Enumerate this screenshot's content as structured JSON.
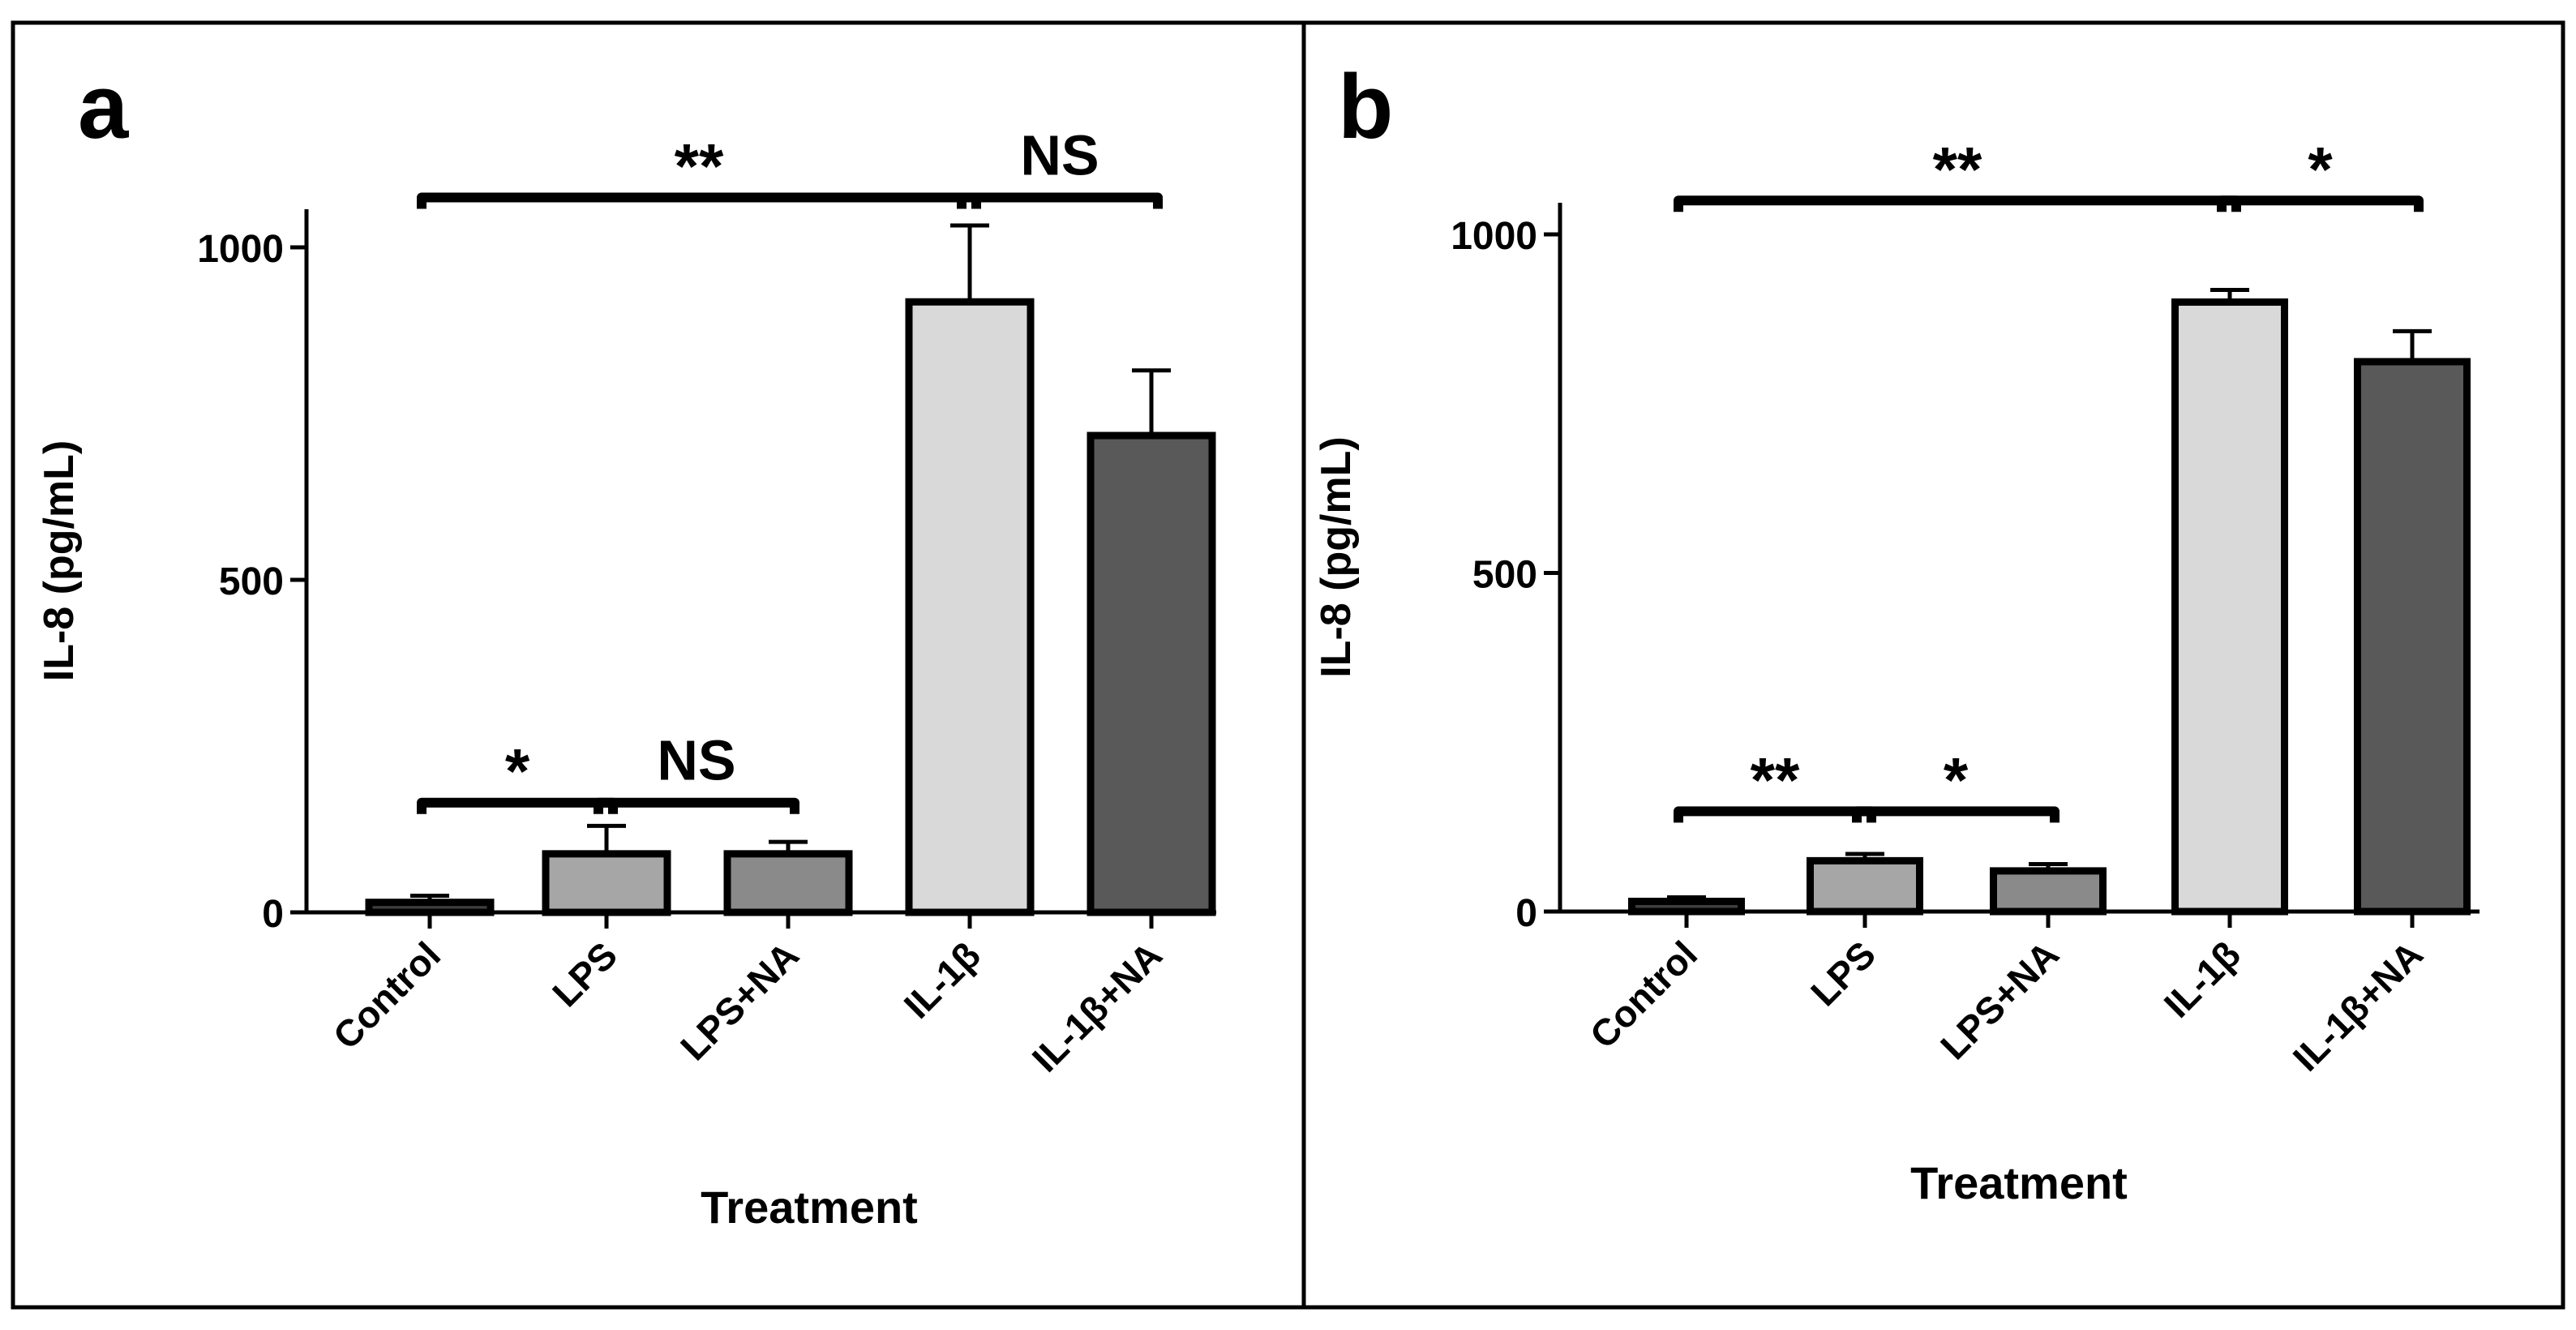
{
  "chart_data": [
    {
      "type": "bar",
      "panel_label": "a",
      "categories": [
        "Control",
        "LPS",
        "LPS+NA",
        "IL-1β",
        "IL-1β+NA"
      ],
      "values": [
        15,
        88,
        88,
        918,
        717
      ],
      "errors": [
        10,
        42,
        18,
        115,
        98
      ],
      "colors": [
        "#3f3f3f",
        "#a6a6a6",
        "#8a8a8a",
        "#d9d9d9",
        "#595959"
      ],
      "xlabel": "Treatment",
      "ylabel": "IL-8 (pg/mL)",
      "ylim": [
        0,
        1050
      ],
      "yticks": [
        0,
        500,
        1000
      ],
      "grid": false,
      "annotations": [
        {
          "from": 0,
          "to": 3,
          "label": "**",
          "y": 1075
        },
        {
          "from": 3,
          "to": 4,
          "label": "NS",
          "y": 1075
        },
        {
          "from": 0,
          "to": 1,
          "label": "*",
          "y": 165
        },
        {
          "from": 1,
          "to": 2,
          "label": "NS",
          "y": 165
        }
      ]
    },
    {
      "type": "bar",
      "panel_label": "b",
      "categories": [
        "Control",
        "LPS",
        "LPS+NA",
        "IL-1β",
        "IL-1β+NA"
      ],
      "values": [
        15,
        75,
        60,
        900,
        812
      ],
      "errors": [
        6,
        10,
        10,
        18,
        45
      ],
      "colors": [
        "#3f3f3f",
        "#a6a6a6",
        "#8a8a8a",
        "#d9d9d9",
        "#595959"
      ],
      "xlabel": "Treatment",
      "ylabel": "IL-8 (pg/mL)",
      "ylim": [
        0,
        1050
      ],
      "yticks": [
        0,
        500,
        1000
      ],
      "grid": false,
      "annotations": [
        {
          "from": 0,
          "to": 3,
          "label": "**",
          "y": 1050
        },
        {
          "from": 3,
          "to": 4,
          "label": "*",
          "y": 1050
        },
        {
          "from": 0,
          "to": 1,
          "label": "**",
          "y": 148
        },
        {
          "from": 1,
          "to": 2,
          "label": "*",
          "y": 148
        }
      ]
    }
  ]
}
